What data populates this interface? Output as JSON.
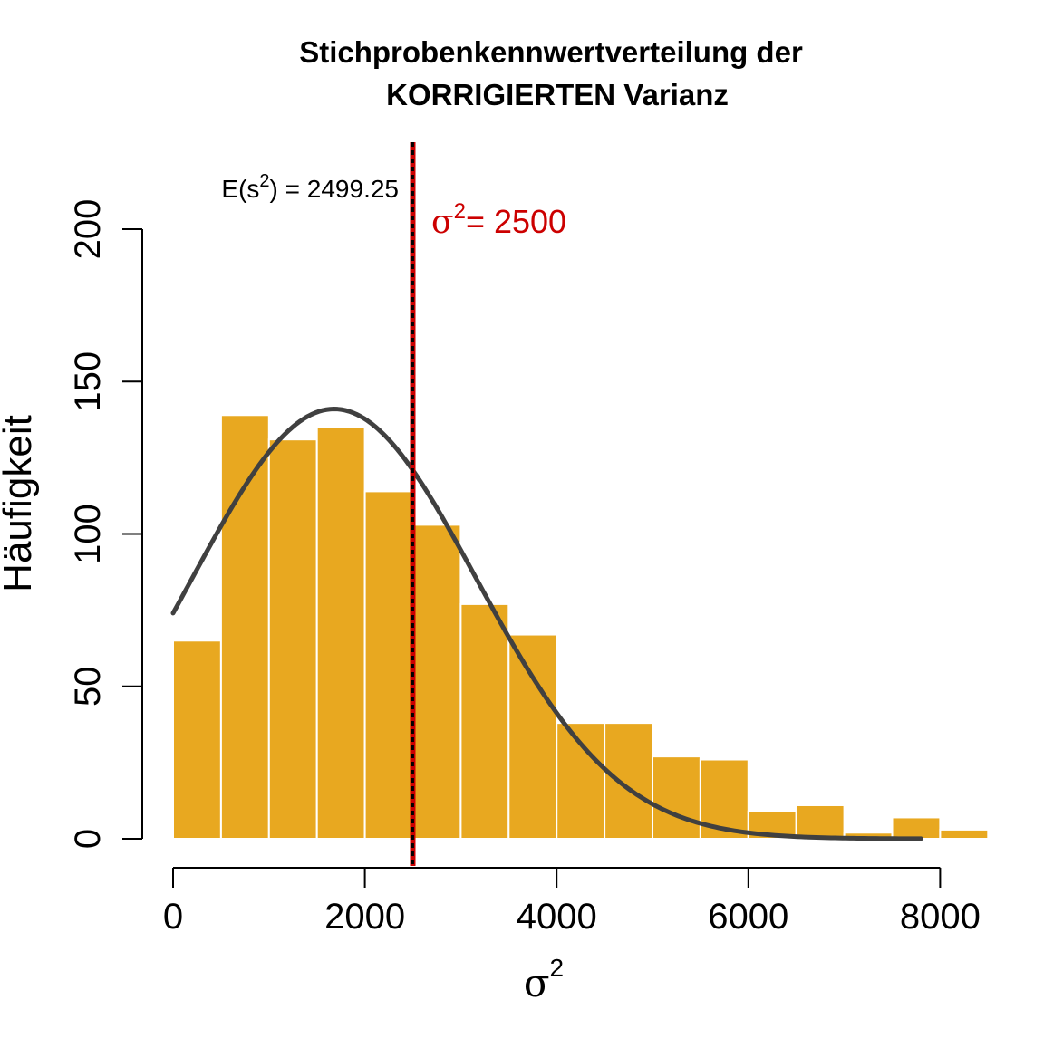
{
  "chart_data": {
    "type": "bar",
    "title_line1": "Stichprobenkennwertverteilung der",
    "title_line2": "KORRIGIERTEN Varianz",
    "xlabel_symbol": "σ",
    "xlabel_superscript": "2",
    "ylabel": "Häufigkeit",
    "xlim": [
      0,
      8300
    ],
    "ylim": [
      0,
      200
    ],
    "x_ticks": [
      0,
      2000,
      4000,
      6000,
      8000
    ],
    "y_ticks": [
      0,
      50,
      100,
      150,
      200
    ],
    "bin_width": 500,
    "bin_starts": [
      0,
      500,
      1000,
      1500,
      2000,
      2500,
      3000,
      3500,
      4000,
      4500,
      5000,
      5500,
      6000,
      6500,
      7000,
      7500,
      8000
    ],
    "counts": [
      65,
      139,
      131,
      135,
      114,
      103,
      77,
      67,
      38,
      38,
      27,
      26,
      9,
      11,
      2,
      7,
      3
    ],
    "bar_color": "#E8A820",
    "curve": {
      "type": "normal density scaled to counts",
      "mean": 1680,
      "sd": 1480,
      "peak": 141,
      "x_range": [
        0,
        7800
      ],
      "color": "#404040"
    },
    "annotations": {
      "expected_value": {
        "prefix": "E(s",
        "superscript": "2",
        "suffix": ") = 2499.25",
        "x": 2499.25,
        "color": "#000000"
      },
      "true_value": {
        "symbol": "σ",
        "superscript": "2",
        "suffix": "= 2500",
        "x": 2500,
        "color": "#CC0000"
      }
    }
  }
}
